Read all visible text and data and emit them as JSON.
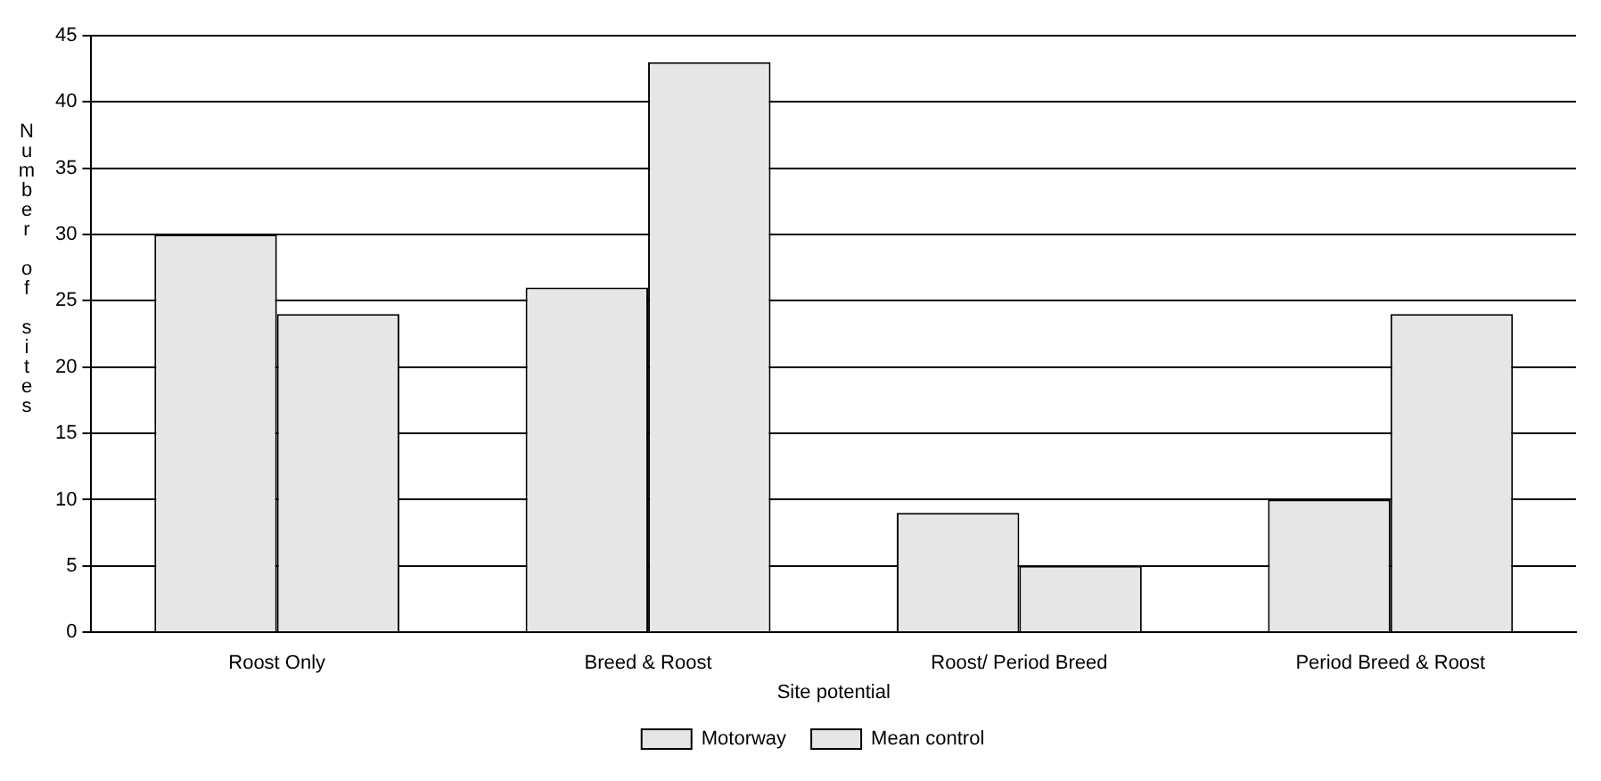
{
  "chart_data": {
    "type": "bar",
    "xlabel": "Site potential",
    "ylabel": "Number of sites",
    "categories": [
      "Roost Only",
      "Breed & Roost",
      "Roost/ Period Breed",
      "Period Breed & Roost"
    ],
    "series": [
      {
        "name": "Motorway",
        "color": "#e6e6e6",
        "values": [
          30,
          26,
          9,
          10
        ]
      },
      {
        "name": "Mean control",
        "color": "#e6e6e6",
        "values": [
          24,
          43,
          5,
          24
        ]
      }
    ],
    "ylim": [
      0,
      45
    ],
    "yticks": [
      0,
      5,
      10,
      15,
      20,
      25,
      30,
      35,
      40,
      45
    ],
    "grid": "y",
    "legend": "bottom"
  }
}
